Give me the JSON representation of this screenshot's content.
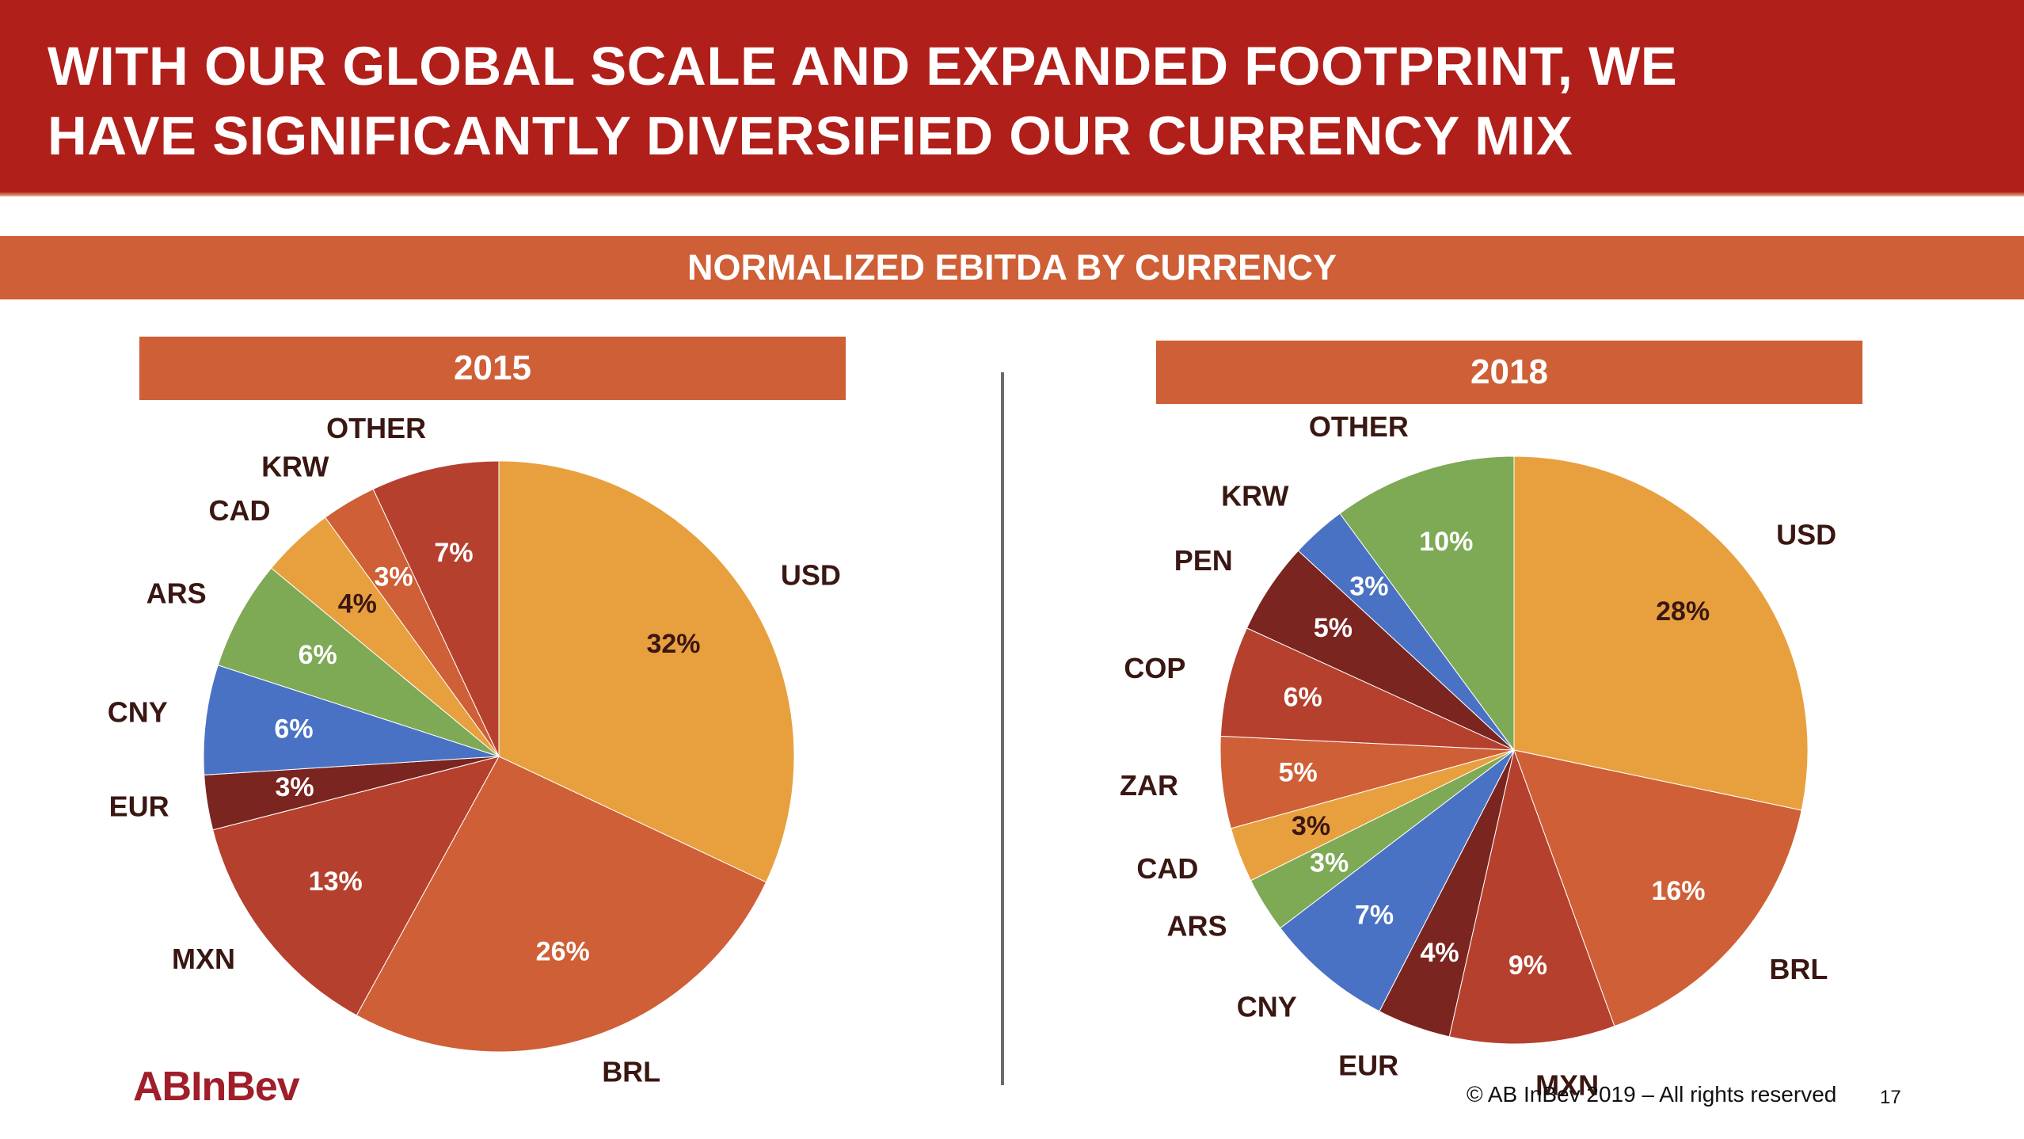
{
  "header": {
    "title_line1": "WITH OUR GLOBAL SCALE AND EXPANDED FOOTPRINT, WE",
    "title_line2": "HAVE SIGNIFICANTLY DIVERSIFIED OUR CURRENCY MIX",
    "subtitle": "NORMALIZED EBITDA BY CURRENCY"
  },
  "colors": {
    "header_red": "#b11f1a",
    "band_orange": "#cf5f36",
    "label_dark": "#3a1712"
  },
  "chart_data": [
    {
      "type": "pie",
      "title": "2015",
      "slices": [
        {
          "label": "USD",
          "value": 32,
          "value_label": "32%",
          "color": "#e8a03f"
        },
        {
          "label": "BRL",
          "value": 26,
          "value_label": "26%",
          "color": "#cf5f36"
        },
        {
          "label": "MXN",
          "value": 13,
          "value_label": "13%",
          "color": "#b5402e"
        },
        {
          "label": "EUR",
          "value": 3,
          "value_label": "3%",
          "color": "#7a2520"
        },
        {
          "label": "CNY",
          "value": 6,
          "value_label": "6%",
          "color": "#4a72c4"
        },
        {
          "label": "ARS",
          "value": 6,
          "value_label": "6%",
          "color": "#7ea955"
        },
        {
          "label": "CAD",
          "value": 4,
          "value_label": "4%",
          "color": "#e8a03f"
        },
        {
          "label": "KRW",
          "value": 3,
          "value_label": "3%",
          "color": "#cf5f36"
        },
        {
          "label": "OTHER",
          "value": 7,
          "value_label": "7%",
          "color": "#b5402e"
        }
      ]
    },
    {
      "type": "pie",
      "title": "2018",
      "slices": [
        {
          "label": "USD",
          "value": 28,
          "value_label": "28%",
          "color": "#e8a03f"
        },
        {
          "label": "BRL",
          "value": 16,
          "value_label": "16%",
          "color": "#cf5f36"
        },
        {
          "label": "MXN",
          "value": 9,
          "value_label": "9%",
          "color": "#b5402e"
        },
        {
          "label": "EUR",
          "value": 4,
          "value_label": "4%",
          "color": "#7a2520"
        },
        {
          "label": "CNY",
          "value": 7,
          "value_label": "7%",
          "color": "#4a72c4"
        },
        {
          "label": "ARS",
          "value": 3,
          "value_label": "3%",
          "color": "#7ea955"
        },
        {
          "label": "CAD",
          "value": 3,
          "value_label": "3%",
          "color": "#e8a03f"
        },
        {
          "label": "ZAR",
          "value": 5,
          "value_label": "5%",
          "color": "#cf5f36"
        },
        {
          "label": "COP",
          "value": 6,
          "value_label": "6%",
          "color": "#b5402e"
        },
        {
          "label": "PEN",
          "value": 5,
          "value_label": "5%",
          "color": "#7a2520"
        },
        {
          "label": "KRW",
          "value": 3,
          "value_label": "3%",
          "color": "#4a72c4"
        },
        {
          "label": "OTHER",
          "value": 10,
          "value_label": "10%",
          "color": "#7ea955"
        }
      ]
    }
  ],
  "footer": {
    "logo": "ABInBev",
    "copyright": "© AB InBev 2019 – All rights reserved",
    "page_number": "17"
  }
}
